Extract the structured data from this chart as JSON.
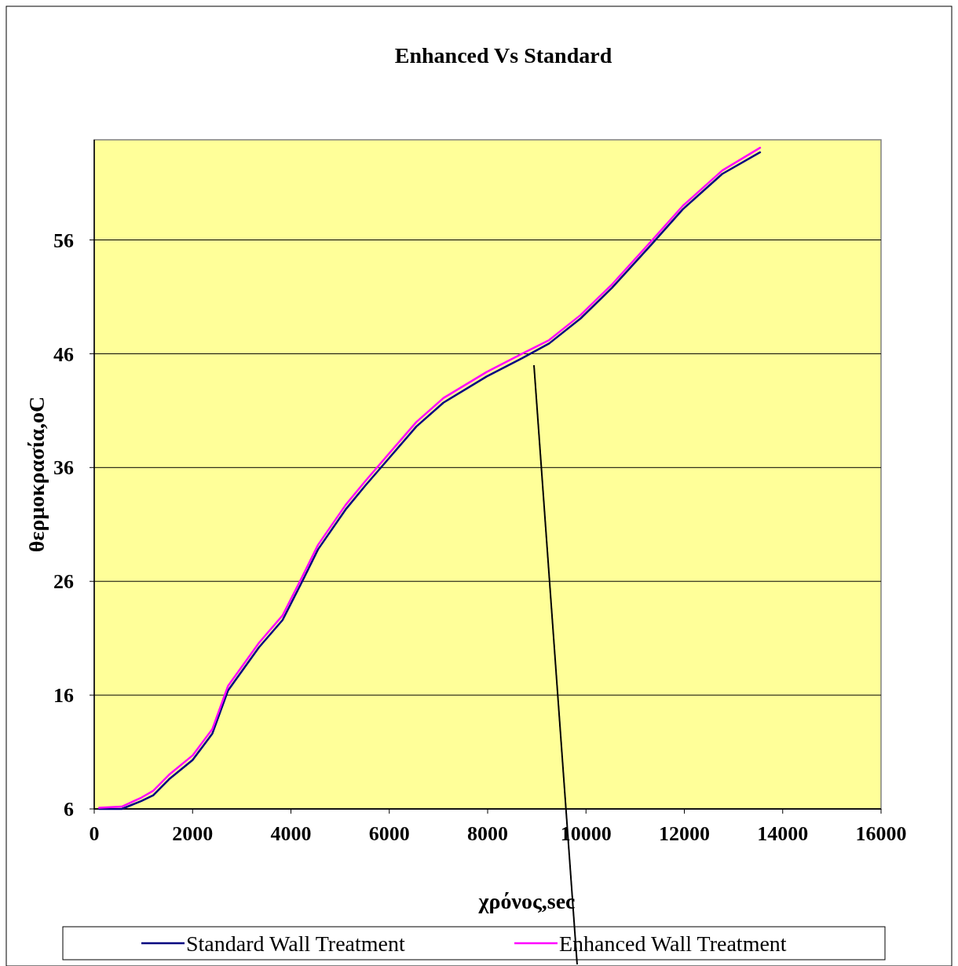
{
  "chart_data": {
    "type": "line",
    "title": "Enhanced Vs Standard",
    "xlabel": "χρόνος,sec",
    "ylabel": "θερμοκρασία,oC",
    "xlim": [
      0,
      16000
    ],
    "xticks": [
      0,
      2000,
      4000,
      6000,
      8000,
      10000,
      12000,
      14000,
      16000
    ],
    "ylim": [
      6,
      64.8
    ],
    "yticks": [
      6,
      16,
      26,
      36,
      46,
      56
    ],
    "grid": "y",
    "legend": "bottom",
    "marker": "none",
    "line_style": "solid",
    "series": [
      {
        "name": "Standard Wall Treatment",
        "color": "#000080",
        "x": [
          100,
          560,
          960,
          1200,
          1520,
          2000,
          2400,
          2720,
          3350,
          3830,
          4230,
          4550,
          5110,
          5510,
          5990,
          6550,
          7100,
          7980,
          8700,
          9250,
          9890,
          10530,
          11330,
          11970,
          12770,
          13540
        ],
        "values": [
          6,
          6,
          6.7,
          7.2,
          8.6,
          10.3,
          12.6,
          16.4,
          20.2,
          22.6,
          26,
          28.8,
          32.3,
          34.4,
          36.8,
          39.6,
          41.7,
          44,
          45.6,
          46.9,
          49.1,
          51.8,
          55.6,
          58.7,
          61.8,
          63.7
        ]
      },
      {
        "name": "Enhanced Wall Treatment",
        "color": "#ff00ff",
        "x": [
          100,
          560,
          960,
          1200,
          1520,
          2000,
          2400,
          2720,
          3350,
          3830,
          4230,
          4550,
          5110,
          5510,
          5990,
          6550,
          7100,
          7980,
          8700,
          9250,
          9890,
          10530,
          11330,
          11970,
          12770,
          13540
        ],
        "values": [
          6.1,
          6.2,
          7,
          7.6,
          9,
          10.7,
          13,
          16.8,
          20.6,
          23,
          26.4,
          29.2,
          32.7,
          34.8,
          37.2,
          40,
          42.1,
          44.4,
          46,
          47.2,
          49.4,
          52.1,
          55.9,
          59,
          62.1,
          64.1
        ]
      }
    ]
  }
}
